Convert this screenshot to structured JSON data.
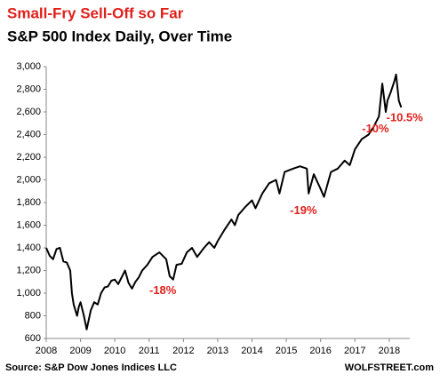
{
  "chart_data": {
    "type": "line",
    "title": "Small-Fry Sell-Off so Far",
    "subtitle": "S&P 500 Index Daily, Over Time",
    "source": "Source: S&P Dow Jones Indices LLC",
    "credit": "WOLFSTREET.com",
    "annotations": [
      {
        "text": "-18%",
        "x": 2011.4,
        "y": 1020
      },
      {
        "text": "-19%",
        "x": 2015.5,
        "y": 1725
      },
      {
        "text": "-10%",
        "x": 2017.6,
        "y": 2445
      },
      {
        "text": "-10.5%",
        "x": 2018.45,
        "y": 2545
      }
    ],
    "x": [
      2008.0,
      2008.1,
      2008.2,
      2008.3,
      2008.4,
      2008.5,
      2008.6,
      2008.7,
      2008.75,
      2008.8,
      2008.85,
      2008.9,
      2008.95,
      2009.0,
      2009.1,
      2009.18,
      2009.3,
      2009.4,
      2009.5,
      2009.6,
      2009.7,
      2009.8,
      2009.9,
      2010.0,
      2010.1,
      2010.3,
      2010.4,
      2010.5,
      2010.6,
      2010.7,
      2010.8,
      2010.95,
      2011.1,
      2011.3,
      2011.5,
      2011.6,
      2011.7,
      2011.8,
      2011.95,
      2012.1,
      2012.25,
      2012.4,
      2012.6,
      2012.75,
      2012.9,
      2013.0,
      2013.2,
      2013.4,
      2013.5,
      2013.6,
      2013.8,
      2014.0,
      2014.1,
      2014.3,
      2014.5,
      2014.7,
      2014.8,
      2014.95,
      2015.2,
      2015.4,
      2015.6,
      2015.65,
      2015.8,
      2016.0,
      2016.1,
      2016.3,
      2016.5,
      2016.7,
      2016.85,
      2017.0,
      2017.2,
      2017.4,
      2017.55,
      2017.7,
      2017.8,
      2017.9,
      2017.95,
      2018.05,
      2018.15,
      2018.2,
      2018.28,
      2018.35
    ],
    "series": [
      {
        "name": "S&P 500",
        "color": "#000000",
        "values": [
          1400,
          1330,
          1300,
          1390,
          1400,
          1280,
          1270,
          1200,
          1000,
          900,
          850,
          800,
          880,
          920,
          800,
          680,
          850,
          920,
          900,
          1000,
          1050,
          1060,
          1110,
          1120,
          1080,
          1200,
          1090,
          1040,
          1100,
          1140,
          1200,
          1250,
          1320,
          1360,
          1300,
          1150,
          1120,
          1250,
          1260,
          1360,
          1400,
          1320,
          1400,
          1450,
          1400,
          1460,
          1560,
          1650,
          1600,
          1690,
          1760,
          1820,
          1750,
          1880,
          1970,
          2000,
          1880,
          2070,
          2100,
          2120,
          2100,
          1880,
          2050,
          1920,
          1850,
          2070,
          2100,
          2170,
          2130,
          2270,
          2360,
          2400,
          2470,
          2560,
          2850,
          2600,
          2700,
          2780,
          2870,
          2930,
          2700,
          2640
        ]
      }
    ],
    "xlim": [
      2008,
      2018.6
    ],
    "xticks": [
      2008,
      2009,
      2010,
      2011,
      2012,
      2013,
      2014,
      2015,
      2016,
      2017,
      2018
    ],
    "ylim": [
      600,
      3000
    ],
    "yticks": [
      {
        "value": 600,
        "label": "600"
      },
      {
        "value": 800,
        "label": "800"
      },
      {
        "value": 1000,
        "label": "1,000"
      },
      {
        "value": 1200,
        "label": "1,200"
      },
      {
        "value": 1400,
        "label": "1,400"
      },
      {
        "value": 1600,
        "label": "1,600"
      },
      {
        "value": 1800,
        "label": "1,800"
      },
      {
        "value": 2000,
        "label": "2,000"
      },
      {
        "value": 2200,
        "label": "2,200"
      },
      {
        "value": 2400,
        "label": "2,400"
      },
      {
        "value": 2600,
        "label": "2,600"
      },
      {
        "value": 2800,
        "label": "2,800"
      },
      {
        "value": 3000,
        "label": "3,000"
      }
    ],
    "grid": false,
    "annotation_color": "#e0201b"
  }
}
